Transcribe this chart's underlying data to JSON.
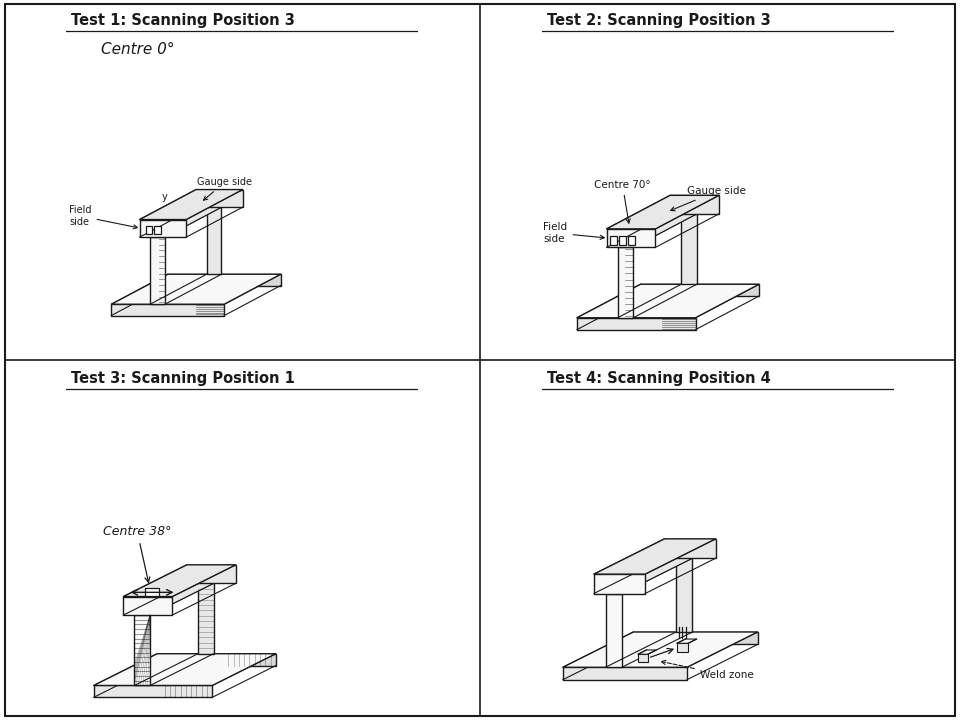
{
  "panels": [
    {
      "title": "Test 1: Scanning Position 3",
      "annotation": "Centre 0°",
      "field_label": "Field\nside",
      "gauge_label": "Gauge side",
      "y_label": "y"
    },
    {
      "title": "Test 2: Scanning Position 3",
      "annotation": "Centre 70°",
      "field_label": "Field\nside",
      "gauge_label": "Gauge side"
    },
    {
      "title": "Test 3: Scanning Position 1",
      "annotation": "Centre 38°"
    },
    {
      "title": "Test 4: Scanning Position 4",
      "weld_label": "Weld zone"
    }
  ],
  "bg_color": "#ffffff",
  "border_color": "#1a1a1a",
  "line_color": "#1a1a1a",
  "fill_light": "#f8f8f8",
  "fill_mid": "#e8e8e8",
  "fill_dark": "#d8d8d8",
  "title_fontsize": 10.5,
  "label_fontsize": 7.5,
  "annot_fontsize": 9
}
